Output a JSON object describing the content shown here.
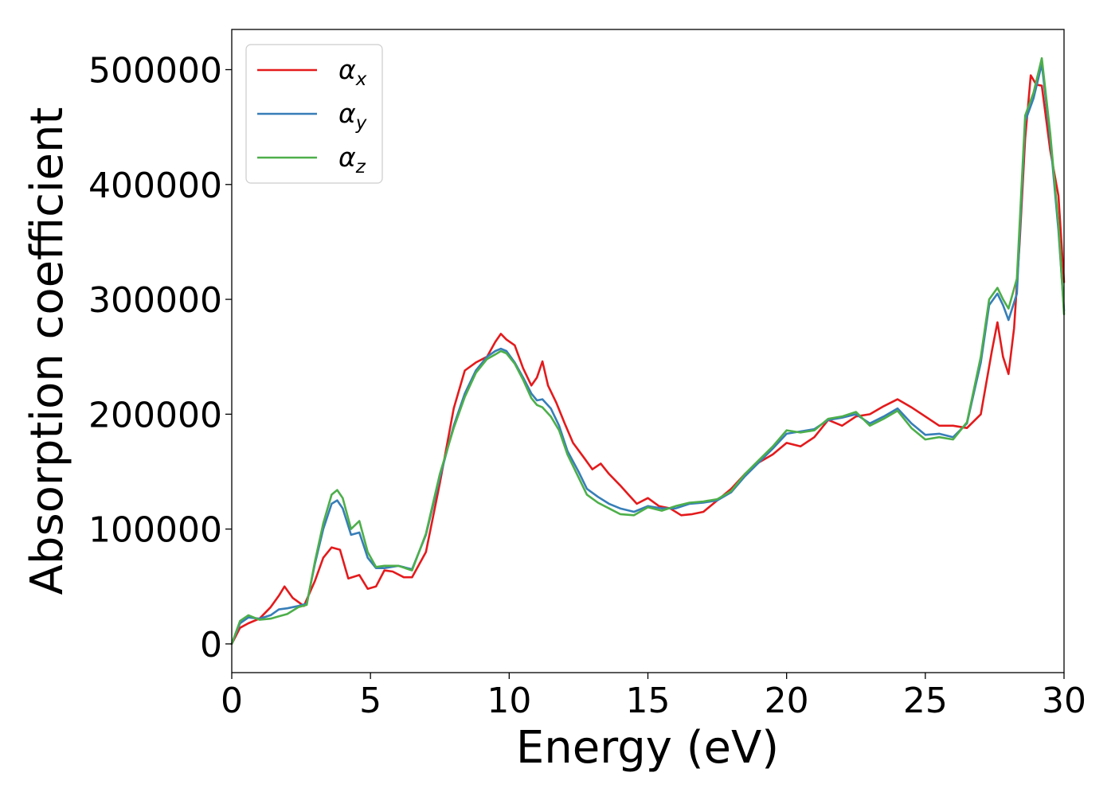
{
  "chart_data": {
    "type": "line",
    "title": "",
    "xlabel": "Energy (eV)",
    "ylabel": "Absorption coefficient",
    "xlim": [
      0,
      30
    ],
    "ylim": [
      -25000,
      535000
    ],
    "xticks": [
      0,
      5,
      10,
      15,
      20,
      25,
      30
    ],
    "xtick_labels": [
      "0",
      "5",
      "10",
      "15",
      "20",
      "25",
      "30"
    ],
    "yticks": [
      0,
      100000,
      200000,
      300000,
      400000,
      500000
    ],
    "ytick_labels": [
      "0",
      "100000",
      "200000",
      "300000",
      "400000",
      "500000"
    ],
    "grid": false,
    "legend_position": "top-left",
    "series": [
      {
        "name": "α",
        "subscript": "x",
        "color": "#e41a1c",
        "x": [
          0,
          0.3,
          0.6,
          1.0,
          1.4,
          1.7,
          1.9,
          2.2,
          2.6,
          3.0,
          3.3,
          3.6,
          3.9,
          4.2,
          4.6,
          4.9,
          5.2,
          5.5,
          5.8,
          6.2,
          6.5,
          7.0,
          7.5,
          8.0,
          8.4,
          8.8,
          9.2,
          9.5,
          9.7,
          9.9,
          10.2,
          10.5,
          10.8,
          11.0,
          11.2,
          11.4,
          11.7,
          12.0,
          12.3,
          12.7,
          13.0,
          13.3,
          13.6,
          14.0,
          14.3,
          14.6,
          15.0,
          15.4,
          15.8,
          16.2,
          16.6,
          17.0,
          17.5,
          18.0,
          18.5,
          19.0,
          19.5,
          20.0,
          20.5,
          21.0,
          21.5,
          22.0,
          22.5,
          23.0,
          23.5,
          24.0,
          24.5,
          25.0,
          25.5,
          26.0,
          26.5,
          27.0,
          27.4,
          27.6,
          27.8,
          28.0,
          28.2,
          28.4,
          28.6,
          28.8,
          29.0,
          29.2,
          29.5,
          29.8,
          30.0
        ],
        "y": [
          0,
          14000,
          18000,
          22000,
          32000,
          42000,
          50000,
          40000,
          33000,
          55000,
          75000,
          84000,
          82000,
          57000,
          60000,
          48000,
          50000,
          64000,
          63000,
          58000,
          58000,
          80000,
          140000,
          205000,
          238000,
          245000,
          250000,
          263000,
          270000,
          265000,
          260000,
          240000,
          225000,
          232000,
          246000,
          225000,
          210000,
          192000,
          175000,
          162000,
          152000,
          157000,
          148000,
          138000,
          130000,
          122000,
          127000,
          120000,
          118000,
          112000,
          113000,
          115000,
          125000,
          135000,
          148000,
          158000,
          165000,
          175000,
          172000,
          180000,
          195000,
          190000,
          198000,
          200000,
          207000,
          213000,
          206000,
          198000,
          190000,
          190000,
          188000,
          200000,
          255000,
          280000,
          250000,
          235000,
          275000,
          350000,
          440000,
          495000,
          487000,
          486000,
          430000,
          390000,
          315000
        ]
      },
      {
        "name": "α",
        "subscript": "y",
        "color": "#377eb8",
        "x": [
          0,
          0.3,
          0.6,
          1.0,
          1.4,
          1.7,
          2.0,
          2.4,
          2.7,
          3.0,
          3.3,
          3.6,
          3.8,
          4.0,
          4.3,
          4.6,
          4.9,
          5.2,
          5.5,
          6.0,
          6.5,
          7.0,
          7.5,
          8.0,
          8.4,
          8.8,
          9.2,
          9.5,
          9.7,
          9.9,
          10.2,
          10.5,
          10.8,
          11.0,
          11.2,
          11.5,
          11.8,
          12.1,
          12.5,
          12.8,
          13.2,
          13.6,
          14.0,
          14.5,
          15.0,
          15.5,
          16.0,
          16.5,
          17.0,
          17.5,
          18.0,
          18.5,
          19.0,
          19.5,
          20.0,
          20.5,
          21.0,
          21.5,
          22.0,
          22.5,
          23.0,
          23.5,
          24.0,
          24.5,
          25.0,
          25.5,
          26.0,
          26.5,
          27.0,
          27.3,
          27.6,
          27.8,
          28.0,
          28.3,
          28.6,
          28.9,
          29.2,
          29.5,
          29.8,
          30.0
        ],
        "y": [
          0,
          18000,
          23000,
          22000,
          25000,
          30000,
          31000,
          33000,
          35000,
          70000,
          100000,
          122000,
          125000,
          118000,
          95000,
          97000,
          75000,
          66000,
          66000,
          68000,
          65000,
          95000,
          145000,
          190000,
          218000,
          238000,
          250000,
          255000,
          257000,
          255000,
          245000,
          232000,
          218000,
          212000,
          213000,
          205000,
          190000,
          168000,
          150000,
          135000,
          128000,
          122000,
          118000,
          115000,
          120000,
          118000,
          118000,
          122000,
          123000,
          125000,
          132000,
          146000,
          158000,
          170000,
          183000,
          185000,
          187000,
          195000,
          197000,
          200000,
          192000,
          198000,
          205000,
          192000,
          182000,
          183000,
          180000,
          192000,
          245000,
          295000,
          305000,
          295000,
          282000,
          305000,
          455000,
          475000,
          505000,
          440000,
          360000,
          290000
        ]
      },
      {
        "name": "α",
        "subscript": "z",
        "color": "#4daf4a",
        "x": [
          0,
          0.3,
          0.6,
          1.0,
          1.4,
          1.7,
          2.0,
          2.4,
          2.7,
          3.0,
          3.3,
          3.6,
          3.8,
          4.0,
          4.3,
          4.6,
          4.9,
          5.2,
          5.5,
          6.0,
          6.5,
          7.0,
          7.5,
          8.0,
          8.4,
          8.8,
          9.2,
          9.5,
          9.7,
          9.9,
          10.2,
          10.5,
          10.8,
          11.0,
          11.2,
          11.5,
          11.8,
          12.1,
          12.5,
          12.8,
          13.2,
          13.6,
          14.0,
          14.5,
          15.0,
          15.5,
          16.0,
          16.5,
          17.0,
          17.5,
          18.0,
          18.5,
          19.0,
          19.5,
          20.0,
          20.5,
          21.0,
          21.5,
          22.0,
          22.5,
          23.0,
          23.5,
          24.0,
          24.5,
          25.0,
          25.5,
          26.0,
          26.5,
          27.0,
          27.3,
          27.6,
          27.8,
          28.0,
          28.3,
          28.6,
          28.9,
          29.2,
          29.5,
          29.8,
          30.0
        ],
        "y": [
          0,
          20000,
          25000,
          21000,
          22000,
          24000,
          26000,
          32000,
          34000,
          72000,
          105000,
          130000,
          134000,
          127000,
          100000,
          107000,
          80000,
          67000,
          68000,
          68000,
          64000,
          96000,
          148000,
          188000,
          215000,
          236000,
          248000,
          252000,
          255000,
          253000,
          244000,
          230000,
          214000,
          208000,
          206000,
          198000,
          186000,
          165000,
          145000,
          130000,
          123000,
          118000,
          113000,
          112000,
          119000,
          116000,
          120000,
          123000,
          124000,
          126000,
          133000,
          148000,
          160000,
          172000,
          186000,
          184000,
          186000,
          196000,
          198000,
          202000,
          190000,
          196000,
          203000,
          188000,
          178000,
          180000,
          178000,
          193000,
          250000,
          300000,
          310000,
          300000,
          292000,
          318000,
          460000,
          480000,
          510000,
          445000,
          365000,
          287000
        ]
      }
    ]
  }
}
